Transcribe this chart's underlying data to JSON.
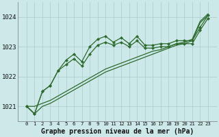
{
  "title": "Graphe pression niveau de la mer (hPa)",
  "bg_color": "#cce8e8",
  "grid_color": "#aacccc",
  "line_color": "#2d6a2d",
  "x_labels": [
    "0",
    "1",
    "2",
    "3",
    "4",
    "5",
    "6",
    "7",
    "8",
    "9",
    "10",
    "11",
    "12",
    "13",
    "14",
    "15",
    "16",
    "17",
    "18",
    "19",
    "20",
    "21",
    "22",
    "23"
  ],
  "ylim": [
    1020.5,
    1024.5
  ],
  "yticks": [
    1021,
    1022,
    1023,
    1024
  ],
  "series_jagged1": [
    1021.0,
    1020.75,
    1021.5,
    1021.7,
    1022.2,
    1022.55,
    1022.75,
    1022.5,
    1023.0,
    1023.25,
    1023.35,
    1023.15,
    1023.3,
    1023.1,
    1023.35,
    1023.05,
    1023.05,
    1023.1,
    1023.1,
    1023.2,
    1023.2,
    1023.2,
    1023.65,
    1024.05
  ],
  "series_jagged2": [
    1021.0,
    1020.75,
    1021.5,
    1021.7,
    1022.2,
    1022.4,
    1022.6,
    1022.35,
    1022.75,
    1023.05,
    1023.15,
    1023.05,
    1023.15,
    1023.0,
    1023.2,
    1022.95,
    1022.95,
    1023.0,
    1023.0,
    1023.1,
    1023.1,
    1023.1,
    1023.55,
    1023.95
  ],
  "series_diag1": [
    1021.0,
    1021.0,
    1021.1,
    1021.2,
    1021.35,
    1021.5,
    1021.65,
    1021.8,
    1021.95,
    1022.1,
    1022.25,
    1022.35,
    1022.45,
    1022.55,
    1022.65,
    1022.75,
    1022.85,
    1022.9,
    1023.0,
    1023.1,
    1023.15,
    1023.25,
    1023.85,
    1024.1
  ],
  "series_diag2": [
    1021.0,
    1020.75,
    1021.0,
    1021.1,
    1021.25,
    1021.4,
    1021.55,
    1021.7,
    1021.85,
    1022.0,
    1022.15,
    1022.25,
    1022.35,
    1022.45,
    1022.55,
    1022.65,
    1022.75,
    1022.85,
    1022.95,
    1023.05,
    1023.1,
    1023.2,
    1023.8,
    1024.05
  ]
}
